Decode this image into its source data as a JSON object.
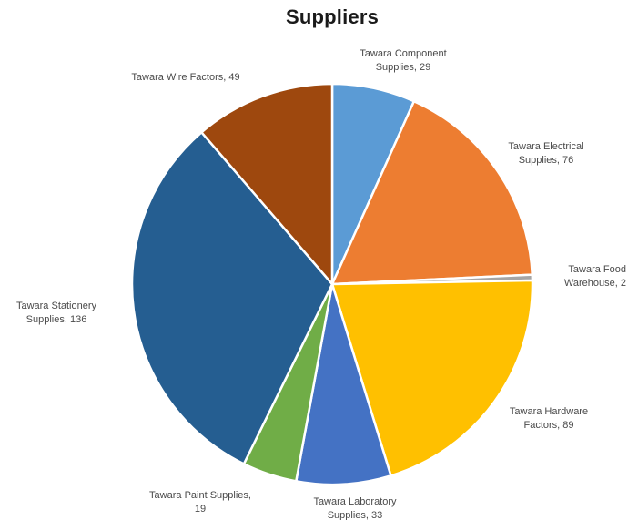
{
  "chart_data": {
    "type": "pie",
    "title": "Suppliers",
    "slices": [
      {
        "label": "Tawara Component Supplies",
        "value": 29,
        "color": "#5b9bd5",
        "label_lines": [
          "Tawara Component",
          "Supplies, 29"
        ]
      },
      {
        "label": "Tawara Electrical Supplies",
        "value": 76,
        "color": "#ed7d31",
        "label_lines": [
          "Tawara Electrical",
          "Supplies, 76"
        ]
      },
      {
        "label": "Tawara Food Warehouse",
        "value": 2,
        "color": "#a5a5a5",
        "label_lines": [
          "Tawara Food",
          "Warehouse, 2"
        ]
      },
      {
        "label": "Tawara Hardware Factors",
        "value": 89,
        "color": "#ffc000",
        "label_lines": [
          "Tawara Hardware",
          "Factors, 89"
        ]
      },
      {
        "label": "Tawara Laboratory Supplies",
        "value": 33,
        "color": "#4472c4",
        "label_lines": [
          "Tawara Laboratory",
          "Supplies, 33"
        ]
      },
      {
        "label": "Tawara Paint Supplies",
        "value": 19,
        "color": "#70ad47",
        "label_lines": [
          "Tawara Paint Supplies,",
          "19"
        ]
      },
      {
        "label": "Tawara Stationery Supplies",
        "value": 136,
        "color": "#255e91",
        "label_lines": [
          "Tawara Stationery",
          "Supplies, 136"
        ]
      },
      {
        "label": "Tawara Wire Factors",
        "value": 49,
        "color": "#9e480e",
        "label_lines": [
          "Tawara Wire Factors, 49"
        ]
      }
    ]
  }
}
